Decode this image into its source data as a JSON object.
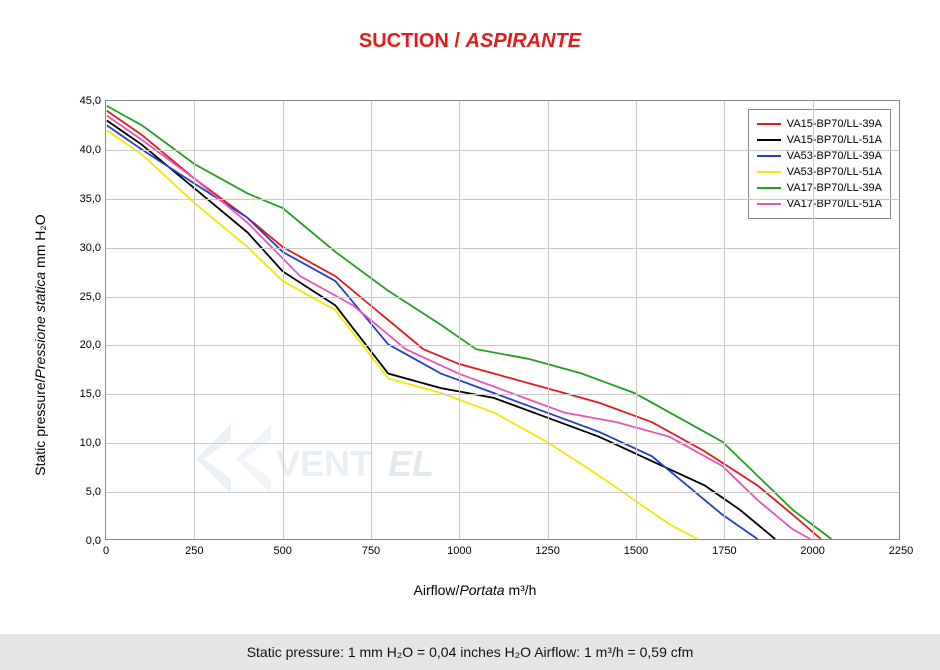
{
  "title": {
    "part1": "SUCTION",
    "sep": " / ",
    "part2": "ASPIRANTE",
    "color": "#e31b1b",
    "fontsize": 20
  },
  "chart": {
    "type": "line",
    "background_color": "#ffffff",
    "grid_color": "#c9c9c9",
    "axis_color": "#888888",
    "xlabel": {
      "plain": "Airflow",
      "sep": "/",
      "ital": "Portata",
      "unit": "  m³/h"
    },
    "ylabel": {
      "plain": "Static pressure",
      "sep": "/",
      "ital": "Pressione statica",
      "unit": "  mm  H₂O"
    },
    "label_fontsize": 14,
    "tick_fontsize": 11,
    "xlim": [
      0,
      2250
    ],
    "ylim": [
      0,
      45
    ],
    "xtick_step": 250,
    "ytick_step": 5,
    "xticks": [
      0,
      250,
      500,
      750,
      1000,
      1250,
      1500,
      1750,
      2000,
      2250
    ],
    "yticks": [
      0,
      5,
      10,
      15,
      20,
      25,
      30,
      35,
      40,
      45
    ],
    "ytick_labels": [
      "0,0",
      "5,0",
      "10,0",
      "15,0",
      "20,0",
      "25,0",
      "30,0",
      "35,0",
      "40,0",
      "45,0"
    ],
    "line_width": 1.8,
    "legend": {
      "position": "top-right",
      "border_color": "#888888",
      "bg": "#ffffff"
    },
    "series": [
      {
        "label": "VA15-BP70/LL-39A",
        "color": "#e31b1b",
        "x": [
          0,
          100,
          250,
          400,
          500,
          650,
          800,
          900,
          1000,
          1100,
          1250,
          1400,
          1550,
          1700,
          1850,
          1950,
          2030
        ],
        "y": [
          44.0,
          41.5,
          37.0,
          33.0,
          30.0,
          27.0,
          22.5,
          19.5,
          18.0,
          17.0,
          15.5,
          14.0,
          12.0,
          9.0,
          5.5,
          2.5,
          0.0
        ]
      },
      {
        "label": "VA15-BP70/LL-51A",
        "color": "#000000",
        "x": [
          0,
          100,
          250,
          400,
          500,
          650,
          800,
          950,
          1100,
          1250,
          1400,
          1550,
          1700,
          1800,
          1900
        ],
        "y": [
          43.0,
          40.5,
          36.0,
          31.5,
          27.5,
          24.0,
          17.0,
          15.5,
          14.5,
          12.5,
          10.5,
          8.0,
          5.5,
          3.0,
          0.0
        ]
      },
      {
        "label": "VA53-BP70/LL-39A",
        "color": "#2040c8",
        "x": [
          0,
          100,
          250,
          400,
          500,
          650,
          800,
          950,
          1100,
          1250,
          1400,
          1550,
          1650,
          1750,
          1850
        ],
        "y": [
          42.5,
          40.0,
          36.5,
          33.0,
          29.5,
          26.5,
          20.0,
          17.0,
          15.0,
          13.0,
          11.0,
          8.5,
          5.5,
          2.5,
          0.0
        ]
      },
      {
        "label": "VA53-BP70/LL-51A",
        "color": "#f7e600",
        "x": [
          0,
          100,
          250,
          400,
          500,
          650,
          800,
          950,
          1100,
          1250,
          1400,
          1500,
          1600,
          1680
        ],
        "y": [
          42.0,
          39.5,
          34.5,
          30.0,
          26.5,
          23.5,
          16.5,
          15.0,
          13.0,
          10.0,
          6.5,
          4.0,
          1.5,
          0.0
        ]
      },
      {
        "label": "VA17-BP70/LL-39A",
        "color": "#20a020",
        "x": [
          0,
          100,
          250,
          400,
          500,
          650,
          800,
          950,
          1050,
          1200,
          1350,
          1500,
          1650,
          1750,
          1850,
          1950,
          2060
        ],
        "y": [
          44.5,
          42.5,
          38.5,
          35.5,
          34.0,
          29.5,
          25.5,
          22.0,
          19.5,
          18.5,
          17.0,
          15.0,
          12.0,
          10.0,
          6.5,
          3.0,
          0.0
        ]
      },
      {
        "label": "VA17-BP70/LL-51A",
        "color": "#e855b8",
        "x": [
          0,
          100,
          250,
          400,
          550,
          700,
          850,
          1000,
          1150,
          1300,
          1450,
          1600,
          1750,
          1850,
          1950,
          2000
        ],
        "y": [
          43.5,
          41.0,
          37.0,
          32.5,
          27.0,
          24.0,
          19.5,
          17.0,
          15.0,
          13.0,
          12.0,
          10.5,
          7.5,
          4.0,
          1.0,
          0.0
        ]
      }
    ]
  },
  "watermark": {
    "text": "VENTEL",
    "color": "#7aa7c7"
  },
  "footer": {
    "left": "Static pressure: 1 mm H₂O = 0,04 inches H₂O",
    "gap": "      ",
    "right": "Airflow: 1 m³/h = 0,59 cfm",
    "bg": "#e6e6e6"
  }
}
